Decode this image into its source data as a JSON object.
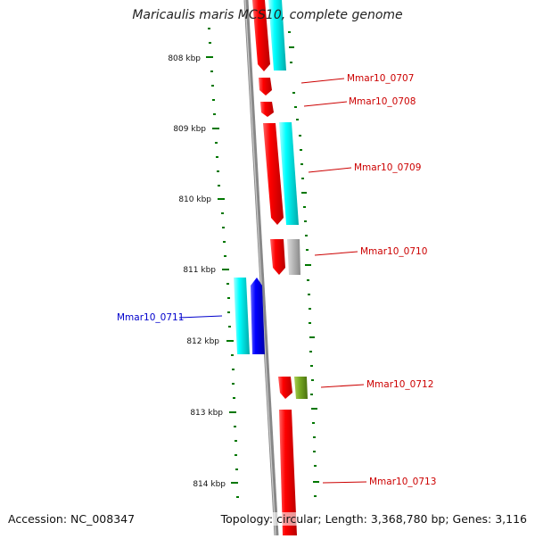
{
  "title": "Maricaulis maris MCS10, complete genome",
  "accession": "Accession: NC_008347",
  "topology": "Topology: circular; Length: 3,368,780 bp; Genes: 3,116",
  "scale_labels": [
    "808 kbp",
    "809 kbp",
    "810 kbp",
    "811 kbp",
    "812 kbp",
    "813 kbp",
    "814 kbp"
  ],
  "gene_labels": [
    {
      "id": "Mmar10_0707",
      "color": "#cc0000"
    },
    {
      "id": "Mmar10_0708",
      "color": "#cc0000"
    },
    {
      "id": "Mmar10_0709",
      "color": "#cc0000"
    },
    {
      "id": "Mmar10_0710",
      "color": "#cc0000"
    },
    {
      "id": "Mmar10_0711",
      "color": "#0000cc"
    },
    {
      "id": "Mmar10_0712",
      "color": "#cc0000"
    },
    {
      "id": "Mmar10_0713",
      "color": "#cc0000"
    }
  ],
  "feature_colors": {
    "cds_forward": "#ff0000",
    "cds_reverse": "#0000ff",
    "cds_cyan": "#00ffff",
    "cds_gray": "#bbbbbb",
    "cds_olive": "#77aa22",
    "tick": "#007700",
    "backbone": "#888888"
  }
}
